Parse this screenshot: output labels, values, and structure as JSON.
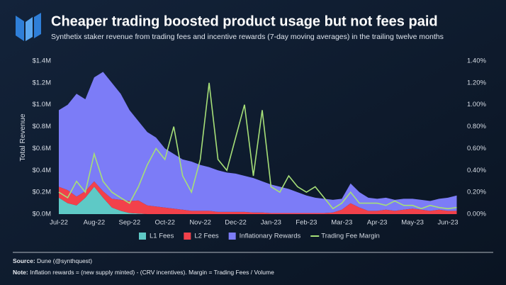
{
  "chart_data": {
    "type": "stacked_area_line",
    "title": "Cheaper trading boosted product usage but not fees paid",
    "subtitle": "Synthetix staker revenue from trading fees and incentive rewards (7-day moving averages) in the trailing twelve months",
    "y_label": "Total Revenue",
    "categories": [
      "Jul-22",
      null,
      null,
      null,
      "Aug-22",
      null,
      null,
      null,
      "Sep-22",
      null,
      null,
      null,
      "Oct-22",
      null,
      null,
      null,
      "Nov-22",
      null,
      null,
      null,
      "Dec-22",
      null,
      null,
      null,
      "Jan-23",
      null,
      null,
      null,
      "Feb-23",
      null,
      null,
      null,
      "Mar-23",
      null,
      null,
      null,
      "Apr-23",
      null,
      null,
      null,
      "May-23",
      null,
      null,
      null,
      "Jun-23",
      null
    ],
    "series": [
      {
        "name": "L1 Fees",
        "color": "#5ec9c6",
        "values": [
          150000,
          100000,
          80000,
          150000,
          250000,
          150000,
          60000,
          30000,
          10000,
          5000,
          0,
          0,
          0,
          0,
          0,
          0,
          0,
          0,
          0,
          0,
          0,
          0,
          0,
          0,
          0,
          0,
          0,
          0,
          0,
          0,
          0,
          0,
          0,
          0,
          0,
          0,
          0,
          0,
          0,
          0,
          0,
          0,
          0,
          0,
          0,
          0
        ]
      },
      {
        "name": "L2 Fees",
        "color": "#f2414b",
        "values": [
          100000,
          120000,
          80000,
          60000,
          50000,
          60000,
          80000,
          100000,
          110000,
          120000,
          80000,
          70000,
          60000,
          50000,
          40000,
          30000,
          30000,
          30000,
          20000,
          20000,
          20000,
          20000,
          15000,
          15000,
          10000,
          10000,
          10000,
          10000,
          10000,
          10000,
          10000,
          15000,
          40000,
          100000,
          60000,
          30000,
          30000,
          40000,
          30000,
          40000,
          50000,
          40000,
          30000,
          40000,
          30000,
          30000
        ]
      },
      {
        "name": "Inflationary Rewards",
        "color": "#7c7cf7",
        "values": [
          700000,
          780000,
          940000,
          840000,
          950000,
          1090000,
          1060000,
          970000,
          830000,
          725000,
          670000,
          630000,
          540000,
          500000,
          460000,
          450000,
          420000,
          400000,
          380000,
          360000,
          350000,
          330000,
          315000,
          285000,
          260000,
          240000,
          220000,
          190000,
          160000,
          140000,
          130000,
          115000,
          100000,
          180000,
          140000,
          120000,
          110000,
          110000,
          100000,
          100000,
          90000,
          90000,
          90000,
          100000,
          120000,
          140000
        ]
      },
      {
        "name": "Trading Fee Margin",
        "color": "#a6df78",
        "axis": "y2",
        "values": [
          0.2,
          0.15,
          0.3,
          0.2,
          0.55,
          0.3,
          0.2,
          0.15,
          0.1,
          0.25,
          0.45,
          0.6,
          0.5,
          0.8,
          0.35,
          0.2,
          0.5,
          1.2,
          0.5,
          0.4,
          0.7,
          1.0,
          0.35,
          0.95,
          0.25,
          0.2,
          0.35,
          0.25,
          0.2,
          0.25,
          0.15,
          0.05,
          0.1,
          0.2,
          0.1,
          0.1,
          0.1,
          0.08,
          0.12,
          0.08,
          0.08,
          0.05,
          0.08,
          0.06,
          0.05,
          0.06
        ]
      }
    ],
    "ylim": [
      0,
      1400000
    ],
    "yticks": [
      {
        "value": 0,
        "label": "$0.0M"
      },
      {
        "value": 200000,
        "label": "$0.2M"
      },
      {
        "value": 400000,
        "label": "$0.4M"
      },
      {
        "value": 600000,
        "label": "$0.6M"
      },
      {
        "value": 800000,
        "label": "$0.8M"
      },
      {
        "value": 1000000,
        "label": "$1.0M"
      },
      {
        "value": 1200000,
        "label": "$1.2M"
      },
      {
        "value": 1400000,
        "label": "$1.4M"
      }
    ],
    "y2lim": [
      0,
      1.4
    ],
    "y2ticks": [
      {
        "value": 0,
        "label": "0.00%"
      },
      {
        "value": 0.2,
        "label": "0.20%"
      },
      {
        "value": 0.4,
        "label": "0.40%"
      },
      {
        "value": 0.6,
        "label": "0.60%"
      },
      {
        "value": 0.8,
        "label": "0.80%"
      },
      {
        "value": 1.0,
        "label": "1.00%"
      },
      {
        "value": 1.2,
        "label": "1.20%"
      },
      {
        "value": 1.4,
        "label": "1.40%"
      }
    ],
    "source_label": "Source:",
    "source": "Dune (@synthquest)",
    "note_label": "Note:",
    "note": "Inflation rewards = (new supply minted) - (CRV incentives). Margin = Trading Fees / Volume"
  }
}
